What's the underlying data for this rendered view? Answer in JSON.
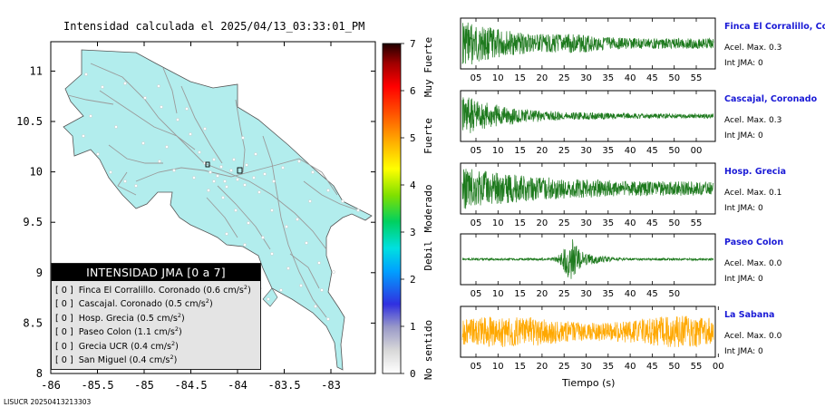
{
  "map": {
    "title": "Intensidad calculada el 2025/04/13_03:33:01_PM",
    "lon_ticks": [
      "-86",
      "-85.5",
      "-85",
      "-84.5",
      "-84",
      "-83.5",
      "-83"
    ],
    "lat_ticks": [
      "8",
      "8.5",
      "9",
      "9.5",
      "10",
      "10.5",
      "11"
    ],
    "land_color": "#b2eded",
    "road_color": "#9a9a9a"
  },
  "scale": {
    "ticks": [
      "0",
      "1",
      "2",
      "3",
      "4",
      "5",
      "6",
      "7"
    ],
    "labels": [
      "No sentido",
      "Debil",
      "Moderado",
      "Fuerte",
      "Muy Fuerte"
    ]
  },
  "legend": {
    "title": "INTENSIDAD JMA [0 a 7]",
    "items": [
      {
        "bracket": "[ 0 ]",
        "text": "Finca El Corralillo. Coronado (0.6 cm/s",
        "sup": "2",
        "close": ")"
      },
      {
        "bracket": "[ 0 ]",
        "text": "Cascajal. Coronado (0.5 cm/s",
        "sup": "2",
        "close": ")"
      },
      {
        "bracket": "[ 0 ]",
        "text": "Hosp. Grecia (0.5 cm/s",
        "sup": "2",
        "close": ")"
      },
      {
        "bracket": "[ 0 ]",
        "text": "Paseo Colon (1.1 cm/s",
        "sup": "2",
        "close": ")"
      },
      {
        "bracket": "[ 0 ]",
        "text": "Grecia UCR (0.4 cm/s",
        "sup": "2",
        "close": ")"
      },
      {
        "bracket": "[ 0 ]",
        "text": "San Miguel (0.4 cm/s",
        "sup": "2",
        "close": ")"
      }
    ]
  },
  "stations": [
    {
      "name": "Finca El Corralillo, Coronado",
      "acel": "Acel. Max. 0.3",
      "int": "Int JMA: 0",
      "color": "#1e7a1e",
      "ticks": [
        "05",
        "10",
        "15",
        "20",
        "25",
        "30",
        "35",
        "40",
        "45",
        "50",
        "55"
      ]
    },
    {
      "name": "Cascajal, Coronado",
      "acel": "Acel. Max. 0.3",
      "int": "Int JMA: 0",
      "color": "#1e7a1e",
      "ticks": [
        "05",
        "10",
        "15",
        "20",
        "25",
        "30",
        "35",
        "40",
        "45",
        "50",
        "00"
      ]
    },
    {
      "name": "Hosp. Grecia",
      "acel": "Acel. Max. 0.1",
      "int": "Int JMA: 0",
      "color": "#1e7a1e",
      "ticks": [
        "05",
        "10",
        "15",
        "20",
        "25",
        "30",
        "35",
        "40",
        "45",
        "50",
        "55"
      ]
    },
    {
      "name": "Paseo Colon",
      "acel": "Acel. Max. 0.0",
      "int": "Int JMA: 0",
      "color": "#1e7a1e",
      "ticks": [
        "05",
        "10",
        "15",
        "20",
        "25",
        "30",
        "35",
        "40",
        "45",
        "50"
      ]
    },
    {
      "name": "La Sabana",
      "acel": "Acel. Max. 0.0",
      "int": "Int JMA: 0",
      "color": "#ffa800",
      "ticks": [
        "05",
        "10",
        "15",
        "20",
        "25",
        "30",
        "35",
        "40",
        "45",
        "50",
        "55",
        "00"
      ]
    }
  ],
  "time_axis_label": "Tiempo (s)",
  "footer": "LISUCR 20250413213303"
}
